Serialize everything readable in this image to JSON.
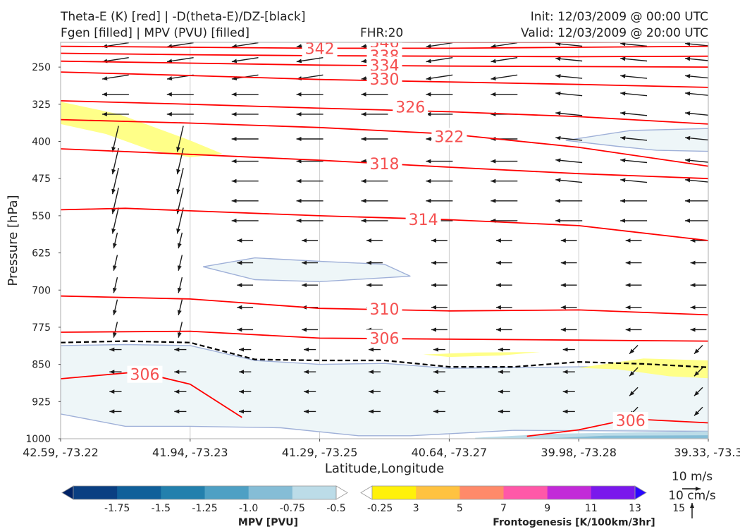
{
  "header": {
    "title_line1": "Theta-E (K) [red] | -D(theta-E)/DZ-[black]",
    "title_line2": "Fgen [filled] | MPV (PVU) [filled]",
    "fhr": "FHR:20",
    "init": "Init: 12/03/2009 @ 00:00 UTC",
    "valid": "Valid: 12/03/2009 @ 20:00 UTC"
  },
  "colors": {
    "theta_e": "#ff0000",
    "theta_e_label": "#f55050",
    "stability": "#000000",
    "fgen_yellow": "#ffff88",
    "mpv_fill": "#eef6f8",
    "mpv_edge": "#9fb0d8",
    "wind": "#1a1a1a"
  },
  "chart_data": {
    "type": "cross-section",
    "ylabel": "Pressure [hPa]",
    "xlabel": "Latitude,Longitude",
    "ylim": [
      1000,
      200
    ],
    "y_ticks": [
      250,
      325,
      400,
      475,
      550,
      625,
      700,
      775,
      850,
      925,
      1000
    ],
    "x_ticks": [
      {
        "pos": 0,
        "label": "42.59, -73.22"
      },
      {
        "pos": 1,
        "label": "41.94, -73.23"
      },
      {
        "pos": 2,
        "label": "41.29, -73.25"
      },
      {
        "pos": 3,
        "label": "40.64, -73.27"
      },
      {
        "pos": 4,
        "label": "39.98, -73.28"
      },
      {
        "pos": 5,
        "label": "39.33, -73.3"
      }
    ],
    "theta_e_contours": [
      {
        "value": "346",
        "pts": [
          [
            0,
            197
          ],
          [
            2,
            199
          ],
          [
            3,
            200
          ],
          [
            4,
            200
          ],
          [
            5,
            199
          ]
        ],
        "label_pos": [
          2.5,
          199
        ]
      },
      {
        "value": "342",
        "pts": [
          [
            0,
            208
          ],
          [
            1,
            210
          ],
          [
            2,
            212
          ],
          [
            3,
            212
          ],
          [
            4,
            210
          ],
          [
            5,
            208
          ]
        ],
        "label_pos": [
          2.0,
          212
        ]
      },
      {
        "value": "338",
        "pts": [
          [
            0,
            222
          ],
          [
            1,
            225
          ],
          [
            2,
            227
          ],
          [
            3,
            228
          ],
          [
            4,
            229
          ],
          [
            5,
            228
          ]
        ],
        "label_pos": [
          2.5,
          227
        ]
      },
      {
        "value": "334",
        "pts": [
          [
            0,
            238
          ],
          [
            1,
            242
          ],
          [
            2,
            246
          ],
          [
            3,
            248
          ],
          [
            4,
            249
          ],
          [
            5,
            250
          ]
        ],
        "label_pos": [
          2.5,
          246
        ]
      },
      {
        "value": "330",
        "pts": [
          [
            0,
            260
          ],
          [
            1,
            267
          ],
          [
            2,
            275
          ],
          [
            3,
            280
          ],
          [
            4,
            285
          ],
          [
            5,
            291
          ]
        ],
        "label_pos": [
          2.5,
          274
        ]
      },
      {
        "value": "326",
        "pts": [
          [
            0,
            318
          ],
          [
            1,
            325
          ],
          [
            2,
            333
          ],
          [
            3,
            340
          ],
          [
            4,
            350
          ],
          [
            5,
            365
          ]
        ],
        "label_pos": [
          2.7,
          330
        ]
      },
      {
        "value": "322",
        "pts": [
          [
            0,
            356
          ],
          [
            1,
            363
          ],
          [
            2,
            372
          ],
          [
            3,
            385
          ],
          [
            4,
            412
          ],
          [
            5,
            450
          ]
        ],
        "label_pos": [
          3.0,
          390
        ]
      },
      {
        "value": "318",
        "pts": [
          [
            0,
            415
          ],
          [
            1,
            426
          ],
          [
            2,
            438
          ],
          [
            3,
            452
          ],
          [
            4,
            465
          ],
          [
            5,
            475
          ]
        ],
        "label_pos": [
          2.5,
          445
        ]
      },
      {
        "value": "314",
        "pts": [
          [
            0,
            538
          ],
          [
            0.5,
            535
          ],
          [
            1,
            540
          ],
          [
            2,
            550
          ],
          [
            3,
            558
          ],
          [
            4,
            570
          ],
          [
            5,
            600
          ]
        ],
        "label_pos": [
          2.8,
          557
        ]
      },
      {
        "value": "310",
        "pts": [
          [
            0,
            712
          ],
          [
            1,
            718
          ],
          [
            2,
            737
          ],
          [
            3,
            742
          ],
          [
            4,
            740
          ],
          [
            5,
            750
          ]
        ],
        "label_pos": [
          2.5,
          738
        ]
      },
      {
        "value": "306",
        "pts": [
          [
            0,
            785
          ],
          [
            1,
            783
          ],
          [
            1.5,
            790
          ],
          [
            2,
            797
          ],
          [
            3,
            799
          ],
          [
            4,
            801
          ],
          [
            5,
            803
          ]
        ],
        "label_pos": [
          2.5,
          797
        ]
      },
      {
        "value": "306",
        "pts": [
          [
            0,
            879
          ],
          [
            0.6,
            865
          ],
          [
            1,
            890
          ],
          [
            1.4,
            957
          ]
        ],
        "label_pos": [
          0.65,
          870
        ]
      },
      {
        "value": "306",
        "pts": [
          [
            3.6,
            995
          ],
          [
            4,
            982
          ],
          [
            4.4,
            960
          ],
          [
            5,
            968
          ]
        ],
        "label_pos": [
          4.4,
          963
        ]
      }
    ],
    "stability_line": [
      [
        0,
        806
      ],
      [
        0.5,
        803
      ],
      [
        1,
        806
      ],
      [
        1.5,
        840
      ],
      [
        2,
        842
      ],
      [
        2.5,
        842
      ],
      [
        3,
        855
      ],
      [
        3.5,
        855
      ],
      [
        4,
        845
      ],
      [
        4.5,
        849
      ],
      [
        5,
        856
      ]
    ],
    "mpv_regions": [
      [
        [
          0,
          812
        ],
        [
          0.5,
          810
        ],
        [
          1,
          812
        ],
        [
          1.5,
          842
        ],
        [
          2,
          850
        ],
        [
          2.5,
          848
        ],
        [
          3,
          858
        ],
        [
          4,
          855
        ],
        [
          4.5,
          854
        ],
        [
          5,
          870
        ],
        [
          5,
          985
        ],
        [
          3.5,
          983
        ],
        [
          2.7,
          994
        ],
        [
          2.3,
          994
        ],
        [
          1.7,
          978
        ],
        [
          1,
          975
        ],
        [
          0.5,
          975
        ],
        [
          0,
          950
        ]
      ],
      [
        [
          1.1,
          653
        ],
        [
          1.5,
          635
        ],
        [
          2,
          642
        ],
        [
          2.5,
          648
        ],
        [
          2.7,
          672
        ],
        [
          2,
          683
        ],
        [
          1.5,
          679
        ]
      ],
      [
        [
          3.9,
          398
        ],
        [
          4.4,
          378
        ],
        [
          5,
          374
        ],
        [
          5,
          420
        ],
        [
          4.6,
          418
        ],
        [
          4.3,
          410
        ]
      ]
    ],
    "fgen_regions": [
      [
        [
          0,
          320
        ],
        [
          0.45,
          345
        ],
        [
          1,
          398
        ],
        [
          1.25,
          425
        ],
        [
          1,
          432
        ],
        [
          0.7,
          418
        ],
        [
          0.35,
          385
        ],
        [
          0,
          365
        ]
      ],
      [
        [
          2.8,
          830
        ],
        [
          3.2,
          826
        ],
        [
          3.7,
          825
        ],
        [
          3.4,
          832
        ],
        [
          3,
          835
        ]
      ],
      [
        [
          4.0,
          857
        ],
        [
          4.5,
          838
        ],
        [
          5,
          842
        ],
        [
          5,
          878
        ],
        [
          4.7,
          874
        ],
        [
          4.3,
          860
        ]
      ]
    ],
    "mpv_colorbar": {
      "label": "MPV [PVU]",
      "tick_labels": [
        "-1.75",
        "-1.5",
        "-1.25",
        "-1.0",
        "-0.75",
        "-0.5",
        "-0.25"
      ],
      "colors": [
        "#002366",
        "#0a3f82",
        "#10609a",
        "#2380ad",
        "#4ea0c4",
        "#85bdd6",
        "#bcdce8",
        "#ffffff"
      ]
    },
    "fgen_colorbar": {
      "label": "Frontogenesis [K/100km/3hr]",
      "tick_labels": [
        "3",
        "5",
        "7",
        "9",
        "11",
        "13",
        "15"
      ],
      "colors": [
        "#ffffff",
        "#fff10a",
        "#ffc240",
        "#ff8a6a",
        "#ff58a8",
        "#c22ad8",
        "#7a18ec",
        "#2a08ff"
      ]
    },
    "vector_key": {
      "label_wind": "10 m/s",
      "label_vertical": "10 cm/s"
    }
  }
}
